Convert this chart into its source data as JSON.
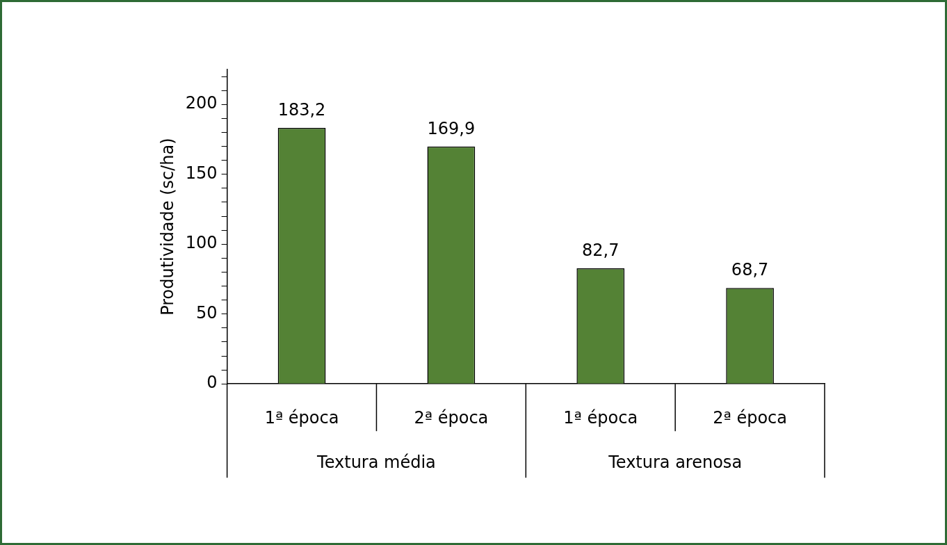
{
  "chart_data": {
    "type": "bar",
    "ylabel": "Produtividade (sc/ha)",
    "categories": [
      "1ª época",
      "2ª época",
      "1ª época",
      "2ª época"
    ],
    "values": [
      183.2,
      169.9,
      82.7,
      68.7
    ],
    "color": "#548235",
    "ylim": [
      0,
      225
    ],
    "yticks": [
      0,
      {
        "value": 10,
        "label": null
      },
      {
        "value": 20,
        "label": null
      },
      {
        "value": 30,
        "label": null
      },
      {
        "value": 40,
        "label": null
      },
      50,
      {
        "value": 60,
        "label": null
      },
      {
        "value": 70,
        "label": null
      },
      {
        "value": 80,
        "label": null
      },
      {
        "value": 90,
        "label": null
      },
      100,
      {
        "value": 110,
        "label": null
      },
      {
        "value": 120,
        "label": null
      },
      {
        "value": 130,
        "label": null
      },
      {
        "value": 140,
        "label": null
      },
      150,
      {
        "value": 160,
        "label": null
      },
      {
        "value": 170,
        "label": null
      },
      {
        "value": 180,
        "label": null
      },
      {
        "value": 190,
        "label": null
      },
      200,
      {
        "value": 210,
        "label": null
      },
      {
        "value": 220,
        "label": null
      }
    ],
    "value_labels": [
      "183,2",
      "169,9",
      "82,7",
      "68,7"
    ],
    "grid": false,
    "legend": false,
    "annotations": [
      "Textura média",
      "Textura arenosa"
    ]
  }
}
